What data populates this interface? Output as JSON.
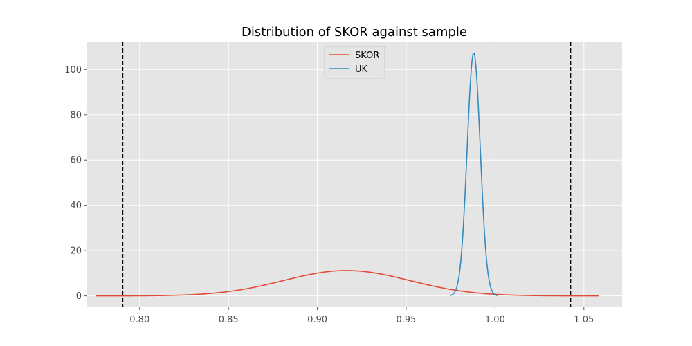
{
  "chart_data": {
    "type": "line",
    "title": "Distribution of SKOR against sample",
    "xlabel": "",
    "ylabel": "",
    "xlim": [
      0.7705,
      1.0715
    ],
    "ylim": [
      -5,
      112
    ],
    "xticks": [
      0.8,
      0.85,
      0.9,
      0.95,
      1.0,
      1.05
    ],
    "xtick_labels": [
      "0.80",
      "0.85",
      "0.90",
      "0.95",
      "1.00",
      "1.05"
    ],
    "yticks": [
      0,
      20,
      40,
      60,
      80,
      100
    ],
    "ytick_labels": [
      "0",
      "20",
      "40",
      "60",
      "80",
      "100"
    ],
    "grid": true,
    "legend": {
      "placement": "top-center"
    },
    "series": [
      {
        "name": "SKOR",
        "color": "#E24A33",
        "distribution": {
          "kind": "normal",
          "mean": 0.9165,
          "sd": 0.0355,
          "peak": 11.2
        },
        "x_range": [
          0.7755,
          1.0585
        ]
      },
      {
        "name": "UK",
        "color": "#348ABD",
        "distribution": {
          "kind": "normal",
          "mean": 0.988,
          "sd": 0.0037,
          "peak": 107.2
        },
        "x_range": [
          0.9745,
          1.0015
        ]
      }
    ],
    "reference_lines": [
      {
        "axis": "x",
        "value": 0.7905,
        "style": "dashed",
        "color": "#000000"
      },
      {
        "axis": "x",
        "value": 1.0425,
        "style": "dashed",
        "color": "#000000"
      }
    ],
    "style": {
      "plot_background": "#E5E5E5",
      "grid_color": "#FFFFFF",
      "tick_label_color": "#4D4D4D"
    }
  }
}
